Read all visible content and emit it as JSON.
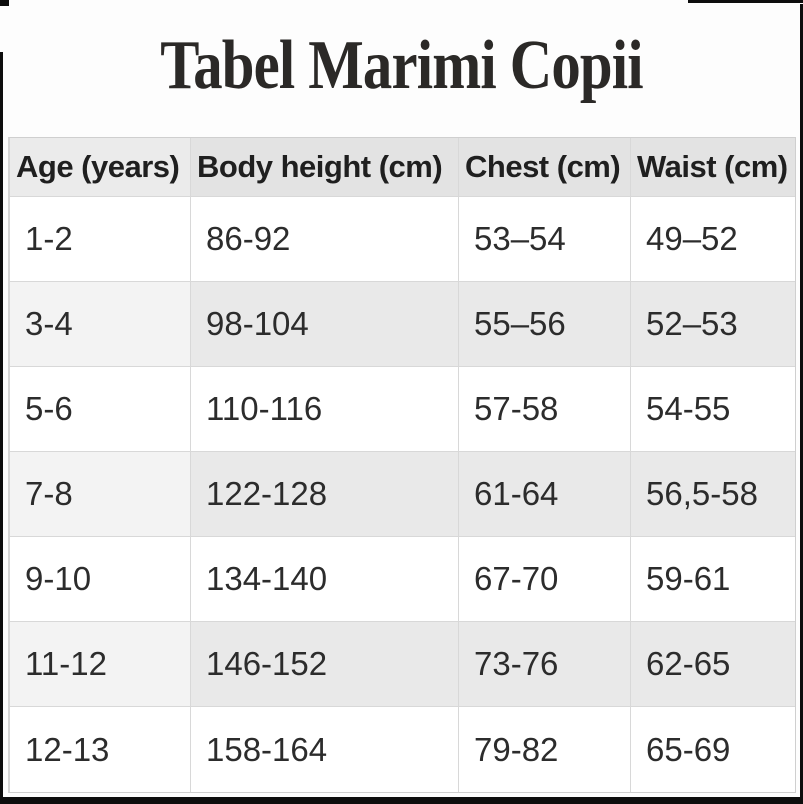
{
  "page": {
    "title": "Tabel Marimi Copii"
  },
  "colors": {
    "header_bg": "#e3e3e3",
    "stripe_bg": "#e9e9e9",
    "border": "#d8d8d8",
    "text": "#2c2c2c"
  },
  "chart_data": {
    "type": "table",
    "title": "Tabel Marimi Copii",
    "columns": [
      "Age (years)",
      "Body height (cm)",
      "Chest (cm)",
      "Waist (cm)"
    ],
    "rows": [
      [
        "1-2",
        "86-92",
        "53–54",
        "49–52"
      ],
      [
        "3-4",
        "98-104",
        "55–56",
        "52–53"
      ],
      [
        "5-6",
        "110-116",
        "57-58",
        "54-55"
      ],
      [
        "7-8",
        "122-128",
        "61-64",
        "56,5-58"
      ],
      [
        "9-10",
        "134-140",
        "67-70",
        "59-61"
      ],
      [
        "11-12",
        "146-152",
        "73-76",
        "62-65"
      ],
      [
        "12-13",
        "158-164",
        "79-82",
        "65-69"
      ]
    ],
    "layout": {
      "striped": true,
      "grid": true,
      "header_position": "top"
    }
  }
}
